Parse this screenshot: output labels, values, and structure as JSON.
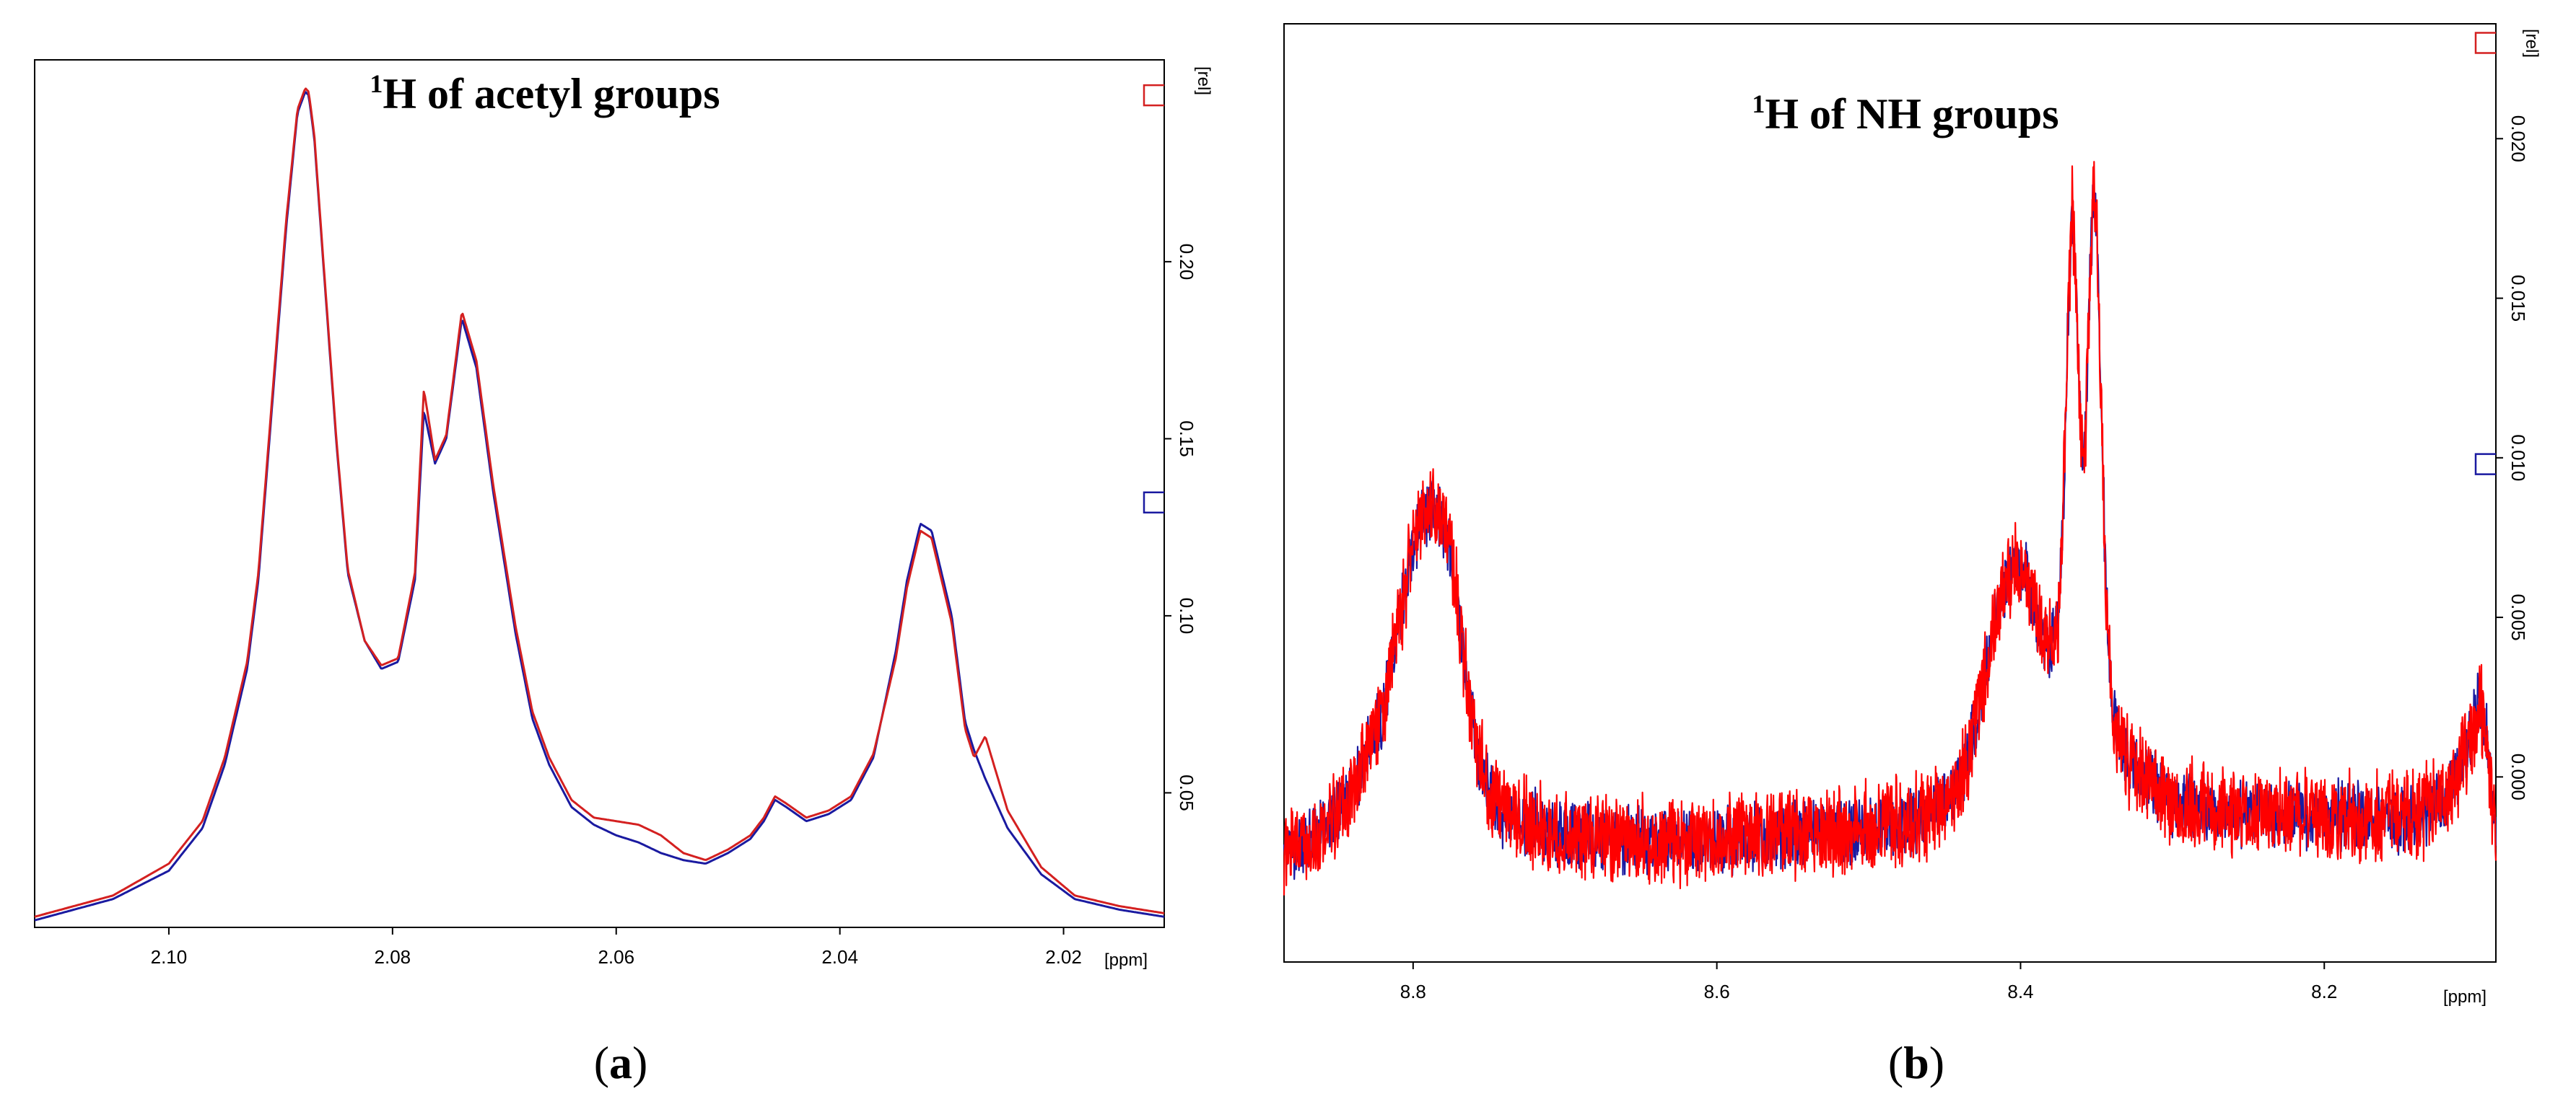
{
  "chart_data": [
    {
      "panel_label": "(a)",
      "panel_letter": "a",
      "type": "line",
      "title_sup": "1",
      "title_rest": "H of acetyl groups",
      "x_unit": "[ppm]",
      "y_unit": "[rel]",
      "xlim": [
        2.112,
        2.011
      ],
      "ylim": [
        0.012,
        0.257
      ],
      "x_ticks": [
        "2.10",
        "2.08",
        "2.06",
        "2.04",
        "2.02"
      ],
      "x_tick_values": [
        2.1,
        2.08,
        2.06,
        2.04,
        2.02
      ],
      "y_ticks": [
        "0.05",
        "0.10",
        "0.15",
        "0.20"
      ],
      "y_tick_values": [
        0.05,
        0.1,
        0.15,
        0.2
      ],
      "markers": [
        {
          "color": "#d42020",
          "y": 0.247
        },
        {
          "color": "#1a1aa0",
          "y": 0.132
        }
      ],
      "series": [
        {
          "name": "blue",
          "color": "#1a1aa0",
          "x": [
            2.112,
            2.105,
            2.1,
            2.097,
            2.095,
            2.093,
            2.092,
            2.091,
            2.0895,
            2.0885,
            2.0878,
            2.0875,
            2.087,
            2.0862,
            2.085,
            2.084,
            2.0825,
            2.081,
            2.0795,
            2.078,
            2.0772,
            2.0762,
            2.0752,
            2.0738,
            2.0725,
            2.071,
            2.069,
            2.0675,
            2.066,
            2.064,
            2.062,
            2.06,
            2.058,
            2.056,
            2.054,
            2.052,
            2.05,
            2.048,
            2.0468,
            2.0458,
            2.0448,
            2.043,
            2.041,
            2.039,
            2.037,
            2.035,
            2.034,
            2.0328,
            2.0318,
            2.03,
            2.0288,
            2.028,
            2.027,
            2.025,
            2.022,
            2.019,
            2.015,
            2.011
          ],
          "y": [
            0.014,
            0.02,
            0.028,
            0.04,
            0.058,
            0.085,
            0.11,
            0.15,
            0.21,
            0.242,
            0.248,
            0.247,
            0.235,
            0.2,
            0.148,
            0.112,
            0.093,
            0.085,
            0.087,
            0.11,
            0.158,
            0.143,
            0.15,
            0.184,
            0.17,
            0.135,
            0.095,
            0.071,
            0.058,
            0.046,
            0.041,
            0.038,
            0.036,
            0.033,
            0.031,
            0.03,
            0.033,
            0.037,
            0.042,
            0.048,
            0.046,
            0.042,
            0.044,
            0.048,
            0.06,
            0.09,
            0.11,
            0.126,
            0.124,
            0.1,
            0.07,
            0.062,
            0.054,
            0.04,
            0.027,
            0.02,
            0.017,
            0.015
          ]
        },
        {
          "name": "red",
          "color": "#d42020",
          "x": [
            2.112,
            2.105,
            2.1,
            2.097,
            2.095,
            2.093,
            2.092,
            2.091,
            2.0895,
            2.0885,
            2.0878,
            2.0875,
            2.087,
            2.0862,
            2.085,
            2.084,
            2.0825,
            2.081,
            2.0795,
            2.078,
            2.0772,
            2.0762,
            2.0752,
            2.0738,
            2.0725,
            2.071,
            2.069,
            2.0675,
            2.066,
            2.064,
            2.062,
            2.06,
            2.058,
            2.056,
            2.054,
            2.052,
            2.05,
            2.048,
            2.0468,
            2.0458,
            2.0448,
            2.043,
            2.041,
            2.039,
            2.037,
            2.035,
            2.034,
            2.0328,
            2.0318,
            2.03,
            2.0288,
            2.028,
            2.027,
            2.025,
            2.022,
            2.019,
            2.015,
            2.011
          ],
          "y": [
            0.015,
            0.021,
            0.03,
            0.042,
            0.06,
            0.087,
            0.112,
            0.152,
            0.212,
            0.243,
            0.249,
            0.248,
            0.236,
            0.201,
            0.149,
            0.113,
            0.093,
            0.086,
            0.088,
            0.112,
            0.164,
            0.144,
            0.151,
            0.186,
            0.172,
            0.137,
            0.097,
            0.073,
            0.06,
            0.048,
            0.043,
            0.042,
            0.041,
            0.038,
            0.033,
            0.031,
            0.034,
            0.038,
            0.043,
            0.049,
            0.047,
            0.043,
            0.045,
            0.049,
            0.061,
            0.088,
            0.108,
            0.124,
            0.122,
            0.098,
            0.068,
            0.06,
            0.066,
            0.045,
            0.029,
            0.021,
            0.018,
            0.016
          ]
        }
      ]
    },
    {
      "panel_label": "(b)",
      "panel_letter": "b",
      "type": "line",
      "title_sup": "1",
      "title_rest": "H of NH groups",
      "x_unit": "[ppm]",
      "y_unit": "[rel]",
      "xlim": [
        8.885,
        8.087
      ],
      "ylim": [
        -0.0058,
        0.0236
      ],
      "x_ticks": [
        "8.8",
        "8.6",
        "8.4",
        "8.2"
      ],
      "x_tick_values": [
        8.8,
        8.6,
        8.4,
        8.2
      ],
      "y_ticks": [
        "0.000",
        "0.005",
        "0.010",
        "0.015",
        "0.020"
      ],
      "y_tick_values": [
        0.0,
        0.005,
        0.01,
        0.015,
        0.02
      ],
      "markers": [
        {
          "color": "#d42020",
          "y": 0.023
        },
        {
          "color": "#1a1aa0",
          "y": 0.0098
        }
      ],
      "series": [
        {
          "name": "blue",
          "color": "#1a1aa0",
          "noise": 0.0012,
          "x": [
            8.885,
            8.86,
            8.84,
            8.82,
            8.805,
            8.795,
            8.787,
            8.782,
            8.777,
            8.772,
            8.765,
            8.758,
            8.75,
            8.74,
            8.72,
            8.7,
            8.65,
            8.6,
            8.55,
            8.5,
            8.46,
            8.44,
            8.43,
            8.42,
            8.412,
            8.405,
            8.398,
            8.392,
            8.385,
            8.38,
            8.375,
            8.372,
            8.369,
            8.366,
            8.363,
            8.36,
            8.357,
            8.354,
            8.352,
            8.35,
            8.347,
            8.344,
            8.34,
            8.335,
            8.33,
            8.32,
            8.3,
            8.25,
            8.2,
            8.15,
            8.12,
            8.105,
            8.098,
            8.093,
            8.087
          ],
          "y": [
            -0.0025,
            -0.0018,
            -0.0005,
            0.002,
            0.006,
            0.0082,
            0.0085,
            0.0083,
            0.0075,
            0.006,
            0.0032,
            0.0008,
            -0.0005,
            -0.0012,
            -0.0015,
            -0.0018,
            -0.002,
            -0.002,
            -0.0018,
            -0.0016,
            -0.0012,
            -0.0002,
            0.0015,
            0.004,
            0.0058,
            0.0064,
            0.0066,
            0.0055,
            0.0042,
            0.004,
            0.0048,
            0.008,
            0.014,
            0.0178,
            0.015,
            0.0098,
            0.011,
            0.016,
            0.0183,
            0.017,
            0.012,
            0.006,
            0.0025,
            0.0012,
            0.0005,
            0.0002,
            -0.0008,
            -0.0012,
            -0.0012,
            -0.0013,
            -0.0008,
            0.001,
            0.0024,
            0.0012,
            -0.0018
          ]
        },
        {
          "name": "red",
          "color": "#ff0000",
          "noise": 0.0016,
          "x": [
            8.885,
            8.86,
            8.84,
            8.82,
            8.805,
            8.795,
            8.787,
            8.782,
            8.777,
            8.772,
            8.765,
            8.758,
            8.75,
            8.74,
            8.72,
            8.7,
            8.65,
            8.6,
            8.55,
            8.5,
            8.46,
            8.44,
            8.43,
            8.42,
            8.412,
            8.405,
            8.398,
            8.392,
            8.385,
            8.38,
            8.375,
            8.372,
            8.369,
            8.366,
            8.363,
            8.36,
            8.357,
            8.354,
            8.352,
            8.35,
            8.347,
            8.344,
            8.34,
            8.335,
            8.33,
            8.32,
            8.3,
            8.25,
            8.2,
            8.15,
            8.12,
            8.105,
            8.098,
            8.093,
            8.087
          ],
          "y": [
            -0.0025,
            -0.0018,
            -0.0005,
            0.002,
            0.006,
            0.0082,
            0.0085,
            0.0083,
            0.0075,
            0.006,
            0.0032,
            0.0008,
            -0.0005,
            -0.0012,
            -0.0015,
            -0.0018,
            -0.002,
            -0.002,
            -0.0018,
            -0.0016,
            -0.0012,
            -0.0002,
            0.0015,
            0.004,
            0.0058,
            0.0064,
            0.0066,
            0.0055,
            0.0042,
            0.004,
            0.0048,
            0.008,
            0.014,
            0.0178,
            0.015,
            0.0098,
            0.011,
            0.016,
            0.0183,
            0.017,
            0.012,
            0.006,
            0.0025,
            0.0012,
            0.0005,
            0.0002,
            -0.0008,
            -0.0012,
            -0.0012,
            -0.0013,
            -0.0008,
            0.001,
            0.0024,
            0.0012,
            -0.0018
          ]
        }
      ]
    }
  ]
}
